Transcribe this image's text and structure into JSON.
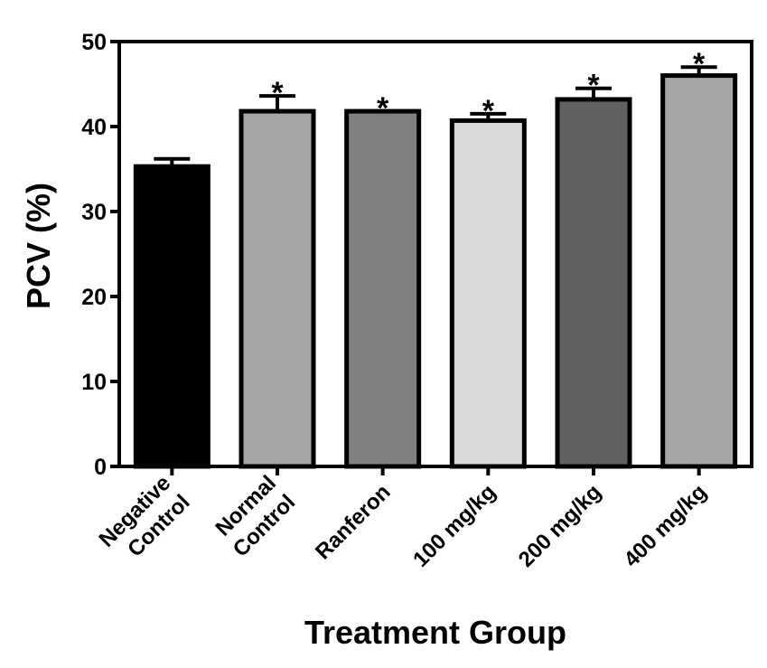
{
  "chart_data": {
    "type": "bar",
    "categories": [
      [
        "Negative",
        "Control"
      ],
      [
        "Normal",
        "Control"
      ],
      [
        "Ranferon"
      ],
      [
        "100 mg/kg"
      ],
      [
        "200 mg/kg"
      ],
      [
        "400 mg/kg"
      ]
    ],
    "values": [
      35.3,
      41.8,
      41.8,
      40.7,
      43.2,
      46.0
    ],
    "errors": [
      0.9,
      1.8,
      0.0,
      0.8,
      1.3,
      1.0
    ],
    "significance": [
      "",
      "*",
      "*",
      "*",
      "*",
      "*"
    ],
    "bar_colors": [
      "#000000",
      "#a6a6a6",
      "#808080",
      "#d9d9d9",
      "#616161",
      "#a6a6a6"
    ],
    "xlabel": "Treatment Group",
    "ylabel": "PCV (%)",
    "ylim": [
      0,
      50
    ],
    "yticks": [
      0,
      10,
      20,
      30,
      40,
      50
    ],
    "grid": false,
    "legend": "none"
  }
}
